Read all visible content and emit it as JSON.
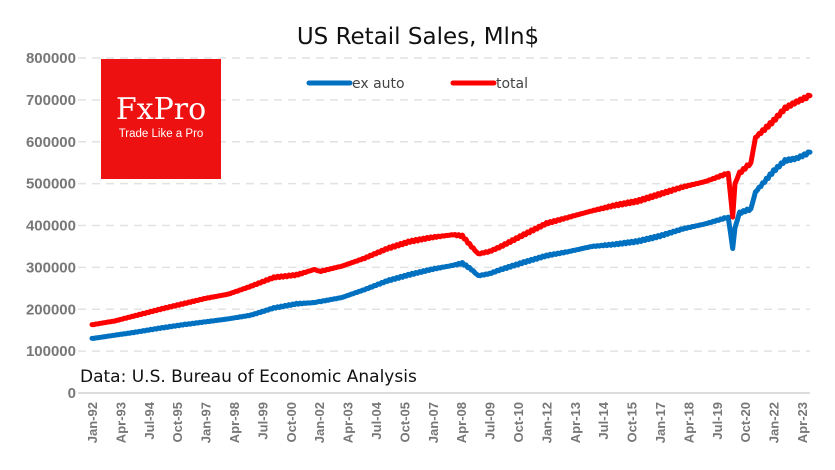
{
  "chart_data": {
    "type": "line",
    "title": "US Retail Sales, Mln$",
    "xlabel": "",
    "ylabel": "",
    "ylim": [
      0,
      800000
    ],
    "y_ticks": [
      "0",
      "100000",
      "200000",
      "300000",
      "400000",
      "500000",
      "600000",
      "700000",
      "800000"
    ],
    "x_ticks": [
      "Jan-92",
      "Apr-93",
      "Jul-94",
      "Oct-95",
      "Jan-97",
      "Apr-98",
      "Jul-99",
      "Oct-00",
      "Jan-02",
      "Apr-03",
      "Jul-04",
      "Oct-05",
      "Jan-07",
      "Apr-08",
      "Jul-09",
      "Oct-10",
      "Jan-12",
      "Apr-13",
      "Jul-14",
      "Oct-15",
      "Jan-17",
      "Apr-18",
      "Jul-19",
      "Oct-20",
      "Jan-22",
      "Apr-23"
    ],
    "x_range": [
      "Jan-92",
      "Aug-23"
    ],
    "grid": "horizontal dashed",
    "legend": {
      "position": "top-center",
      "entries": [
        "ex auto",
        "total"
      ]
    },
    "source_note": "Data: U.S. Bureau of Economic Analysis",
    "x": [
      1992.0,
      1993.0,
      1994.0,
      1995.0,
      1996.0,
      1997.0,
      1998.0,
      1999.0,
      2000.0,
      2001.0,
      2001.8,
      2002.0,
      2003.0,
      2004.0,
      2005.0,
      2006.0,
      2007.0,
      2007.9,
      2008.3,
      2008.7,
      2009.0,
      2009.5,
      2010.0,
      2011.0,
      2012.0,
      2013.0,
      2014.0,
      2015.0,
      2016.0,
      2017.0,
      2018.0,
      2019.0,
      2020.0,
      2020.2,
      2020.3,
      2020.5,
      2021.0,
      2021.2,
      2022.0,
      2022.5,
      2023.0,
      2023.6
    ],
    "series": [
      {
        "name": "ex auto",
        "color": "#0070C0",
        "values": [
          130000,
          138000,
          146000,
          155000,
          163000,
          170000,
          177000,
          186000,
          203000,
          213000,
          216000,
          218000,
          228000,
          247000,
          268000,
          283000,
          296000,
          305000,
          310000,
          295000,
          280000,
          285000,
          295000,
          312000,
          328000,
          338000,
          350000,
          355000,
          362000,
          375000,
          392000,
          404000,
          420000,
          345000,
          395000,
          430000,
          440000,
          480000,
          530000,
          555000,
          560000,
          575000
        ]
      },
      {
        "name": "total",
        "color": "#FF0000",
        "values": [
          163000,
          172000,
          186000,
          200000,
          213000,
          226000,
          236000,
          255000,
          276000,
          282000,
          295000,
          290000,
          303000,
          322000,
          345000,
          362000,
          372000,
          378000,
          375000,
          350000,
          332000,
          338000,
          350000,
          378000,
          405000,
          420000,
          435000,
          448000,
          458000,
          475000,
          492000,
          505000,
          525000,
          420000,
          500000,
          525000,
          550000,
          610000,
          650000,
          680000,
          695000,
          710000
        ]
      }
    ]
  },
  "logo": {
    "name": "FxPro",
    "tagline": "Trade Like a Pro",
    "color": "#EE1111"
  }
}
